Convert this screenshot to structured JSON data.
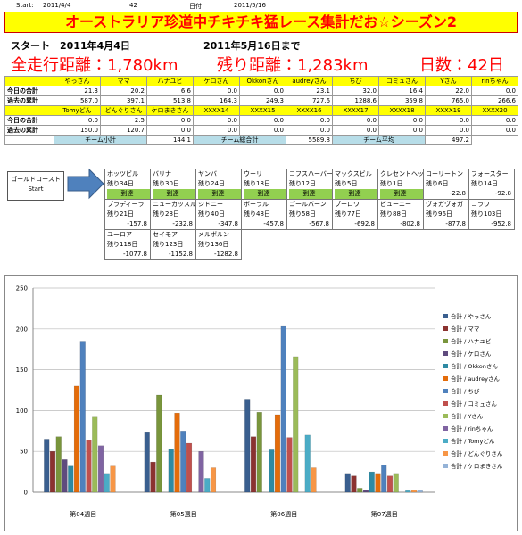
{
  "header": {
    "start_label": "Start:",
    "start_date": "2011/4/4",
    "days": "42",
    "date_label": "日付",
    "date": "2011/5/16"
  },
  "title": "オーストラリア珍道中チキチキ猛レース集計だお☆シーズン2",
  "summary": {
    "start": "スタート　2011年4月4日",
    "until": "2011年5月16日まで",
    "total": "全走行距離：1,780km",
    "remaining": "残り距離：1,283km",
    "days": "日数：42日"
  },
  "table": {
    "blocks": [
      {
        "names": [
          "やっさん",
          "ママ",
          "ハナユビ",
          "ケロさん",
          "Okkonさん",
          "audreyさん",
          "ちび",
          "コミュさん",
          "Yさん",
          "rinちゃん"
        ],
        "rows": [
          {
            "label": "今日の合計",
            "values": [
              "21.3",
              "20.2",
              "6.6",
              "0.0",
              "0.0",
              "23.1",
              "32.0",
              "16.4",
              "22.0",
              "0.0"
            ]
          },
          {
            "label": "過去の累計",
            "values": [
              "587.0",
              "397.1",
              "513.8",
              "164.3",
              "249.3",
              "727.6",
              "1288.6",
              "359.8",
              "765.0",
              "266.6"
            ]
          }
        ]
      },
      {
        "names": [
          "Tomyどん",
          "どんぐりさん",
          "ケロまきさん",
          "XXXX14",
          "XXXX15",
          "XXXX16",
          "XXXX17",
          "XXXX18",
          "XXXX19",
          "XXXX20"
        ],
        "rows": [
          {
            "label": "今日の合計",
            "values": [
              "0.0",
              "2.5",
              "0.0",
              "0.0",
              "0.0",
              "0.0",
              "0.0",
              "0.0",
              "0.0",
              "0.0"
            ]
          },
          {
            "label": "過去の累計",
            "values": [
              "150.0",
              "120.7",
              "0.0",
              "0.0",
              "0.0",
              "0.0",
              "0.0",
              "0.0",
              "0.0",
              "0.0"
            ]
          }
        ]
      }
    ],
    "totals": [
      {
        "label": "チーム小計",
        "value": "144.1"
      },
      {
        "label": "チーム総合計",
        "value": "5589.8"
      },
      {
        "label": "チーム平均",
        "value": "497.2"
      }
    ]
  },
  "route": {
    "start": [
      "ゴールドコースト",
      "Start"
    ],
    "stops": [
      {
        "name": "ホッツビル",
        "remaining": "残り34日",
        "status": "到達"
      },
      {
        "name": "バリナ",
        "remaining": "残り30日",
        "status": "到達"
      },
      {
        "name": "ヤンバ",
        "remaining": "残り24日",
        "status": "到達"
      },
      {
        "name": "ウーリ",
        "remaining": "残り18日",
        "status": "到達"
      },
      {
        "name": "コフスハーバー",
        "remaining": "残り12日",
        "status": "到達"
      },
      {
        "name": "マックスビル",
        "remaining": "残り5日",
        "status": "到達"
      },
      {
        "name": "クレセントヘッド",
        "remaining": "残り1日",
        "status": "到達"
      },
      {
        "name": "ローリートン",
        "remaining": "残り6日",
        "status": "-22.8"
      },
      {
        "name": "フォースター",
        "remaining": "残り14日",
        "status": "-92.8"
      },
      {
        "name": "ブラディーラ",
        "remaining": "残り21日",
        "status": "-157.8"
      },
      {
        "name": "ニューカッスル",
        "remaining": "残り28日",
        "status": "-232.8"
      },
      {
        "name": "シドニー",
        "remaining": "残り40日",
        "status": "-347.8"
      },
      {
        "name": "ボーラル",
        "remaining": "残り48日",
        "status": "-457.8"
      },
      {
        "name": "ゴールバーン",
        "remaining": "残り58日",
        "status": "-567.8"
      },
      {
        "name": "ブーロワ",
        "remaining": "残り77日",
        "status": "-692.8"
      },
      {
        "name": "ビューニー",
        "remaining": "残り88日",
        "status": "-802.8"
      },
      {
        "name": "ヴォガヴォガ",
        "remaining": "残り96日",
        "status": "-877.8"
      },
      {
        "name": "コラワ",
        "remaining": "残り103日",
        "status": "-952.8"
      },
      {
        "name": "ユーロア",
        "remaining": "残り118日",
        "status": "-1077.8"
      },
      {
        "name": "セイモア",
        "remaining": "残り123日",
        "status": "-1152.8"
      },
      {
        "name": "メルボルン",
        "remaining": "残り136日",
        "status": "-1282.8"
      }
    ]
  },
  "chart_data": {
    "type": "bar",
    "categories": [
      "第04週目",
      "第05週目",
      "第06週目",
      "第07週目"
    ],
    "ylim": [
      0,
      250
    ],
    "yticks": [
      0,
      50,
      100,
      150,
      200,
      250
    ],
    "grid": true,
    "series": [
      {
        "name": "合計 / やっさん",
        "color": "#3a5f8f",
        "values": [
          65,
          73,
          113,
          22
        ]
      },
      {
        "name": "合計 / ママ",
        "color": "#8b3230",
        "values": [
          50,
          37,
          68,
          20
        ]
      },
      {
        "name": "合計 / ハナユビ",
        "color": "#79953c",
        "values": [
          68,
          119,
          98,
          5
        ]
      },
      {
        "name": "合計 / ケロさん",
        "color": "#5f4b7e",
        "values": [
          40,
          0,
          0,
          3
        ]
      },
      {
        "name": "合計 / Okkonさん",
        "color": "#2e8aa3",
        "values": [
          32,
          53,
          52,
          25
        ]
      },
      {
        "name": "合計 / audreyさん",
        "color": "#e46c0a",
        "values": [
          130,
          97,
          95,
          22
        ]
      },
      {
        "name": "合計 / ちび",
        "color": "#4f81bd",
        "values": [
          185,
          75,
          203,
          33
        ]
      },
      {
        "name": "合計 / コミュさん",
        "color": "#c0504d",
        "values": [
          64,
          60,
          67,
          20
        ]
      },
      {
        "name": "合計 / Yさん",
        "color": "#9bbb59",
        "values": [
          92,
          0,
          166,
          22
        ]
      },
      {
        "name": "合計 / rinちゃん",
        "color": "#8064a2",
        "values": [
          57,
          50,
          0,
          0
        ]
      },
      {
        "name": "合計 / Tomyどん",
        "color": "#4bacc6",
        "values": [
          22,
          17,
          70,
          2
        ]
      },
      {
        "name": "合計 / どんぐりさん",
        "color": "#f79646",
        "values": [
          32,
          30,
          30,
          3
        ]
      },
      {
        "name": "合計 / ケロまきさん",
        "color": "#95b3d7",
        "values": [
          0,
          0,
          0,
          3
        ]
      }
    ]
  }
}
